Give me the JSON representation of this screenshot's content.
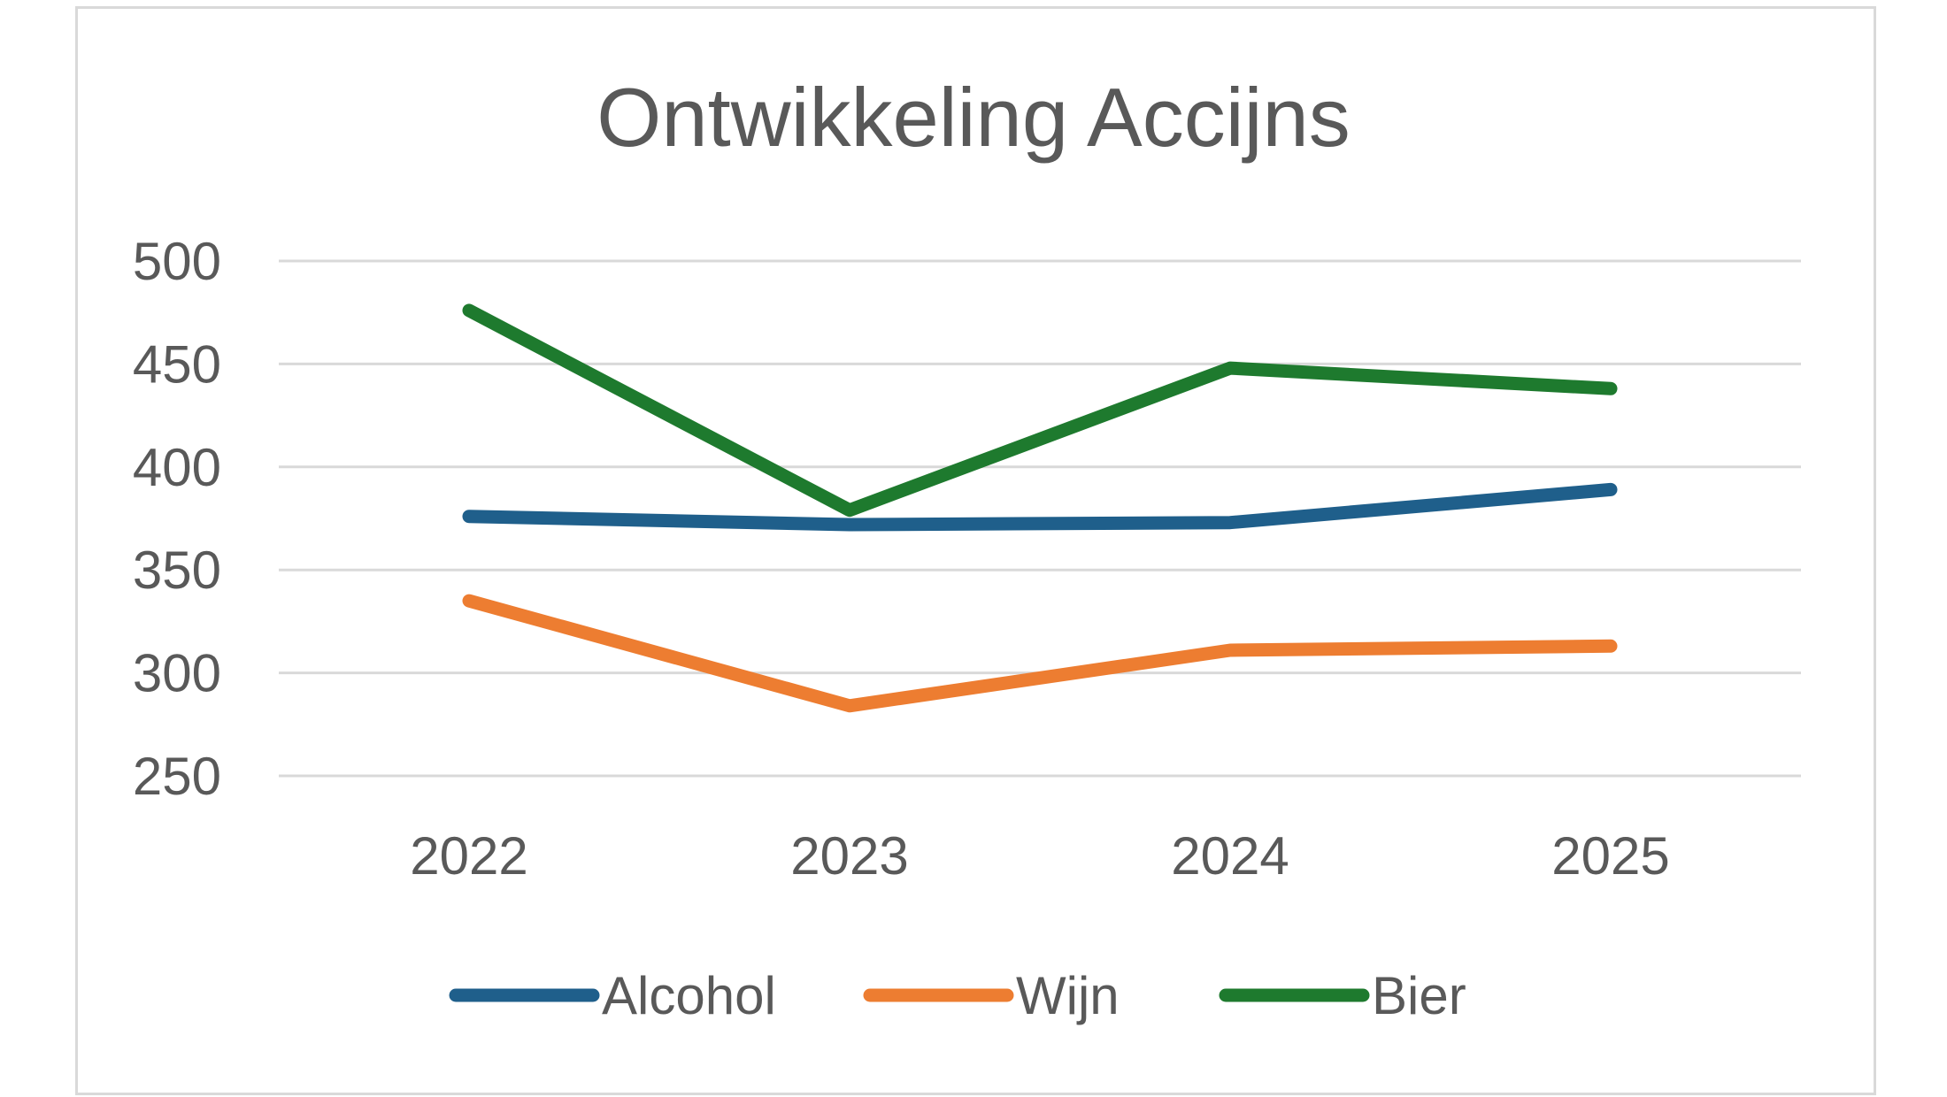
{
  "chart_data": {
    "type": "line",
    "title": "Ontwikkeling Accijns",
    "xlabel": "",
    "ylabel": "",
    "categories": [
      "2022",
      "2023",
      "2024",
      "2025"
    ],
    "ylim": [
      250,
      500
    ],
    "yticks": [
      500,
      450,
      400,
      350,
      300,
      250
    ],
    "grid": true,
    "legend_position": "bottom",
    "series": [
      {
        "name": "Alcohol",
        "color": "#1f5f8b",
        "values": [
          376,
          372,
          373,
          389
        ]
      },
      {
        "name": "Wijn",
        "color": "#ed7d31",
        "values": [
          335,
          284,
          311,
          313
        ]
      },
      {
        "name": "Bier",
        "color": "#1e7a2e",
        "values": [
          476,
          379,
          448,
          438
        ]
      }
    ]
  }
}
